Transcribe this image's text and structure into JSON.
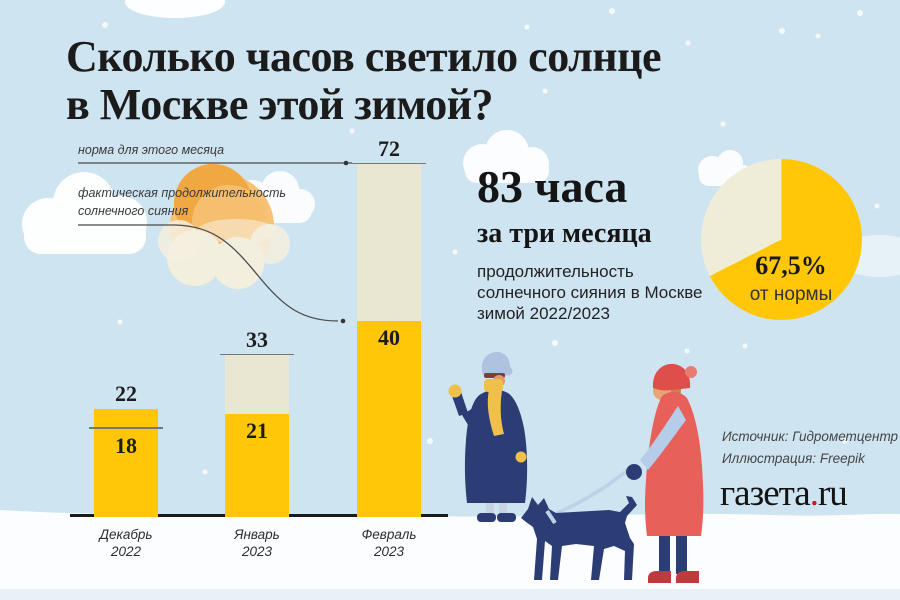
{
  "title": {
    "line1": "Сколько часов светило солнце",
    "line2": "в Москве этой зимой?"
  },
  "annotations": {
    "norm": "норма для этого месяца",
    "actual_line1": "фактическая продолжительность",
    "actual_line2": "солнечного сияния"
  },
  "chart_data": [
    {
      "type": "bar",
      "categories": [
        "Декабрь 2022",
        "Январь 2023",
        "Февраль 2023"
      ],
      "series": [
        {
          "name": "норма для этого месяца",
          "values": [
            18,
            33,
            72
          ],
          "color": "#E9E7D1"
        },
        {
          "name": "фактическая продолжительность солнечного сияния",
          "values": [
            22,
            21,
            40
          ],
          "color": "#FFC708"
        }
      ],
      "ylim": [
        0,
        72
      ],
      "grid": false,
      "value_labels": true,
      "legend_position": "floating-annotations"
    },
    {
      "type": "pie",
      "values": [
        67.5,
        32.5
      ],
      "colors": [
        "#FFC708",
        "#EFEDD8"
      ],
      "percent_text": "67,5%",
      "caption": "от нормы"
    }
  ],
  "stats": {
    "headline": "83 часа",
    "subhead": "за три месяца",
    "description_lines": [
      "продолжительность",
      "солнечного сияния в Москве",
      "зимой 2022/2023"
    ]
  },
  "footer": {
    "source": "Источник: Гидрометцентр",
    "illustration": "Иллюстрация: Freepik",
    "logo_name": "газета",
    "logo_dot": ".",
    "logo_tld": "ru"
  },
  "colors": {
    "sky": "#CFE4F1",
    "snow": "#FBFDFE",
    "bar_actual_yellow": "#FFC708",
    "bar_norm_cream": "#E9E7D1",
    "pie_remainder": "#EFEDD8",
    "sun_orange": "#F0A843",
    "navy": "#2C3D76",
    "coat_red": "#E8605A",
    "scarf_yellow": "#EFC14A",
    "light_blue": "#B5CDE8",
    "logo_dot_red": "#C41E1E"
  }
}
